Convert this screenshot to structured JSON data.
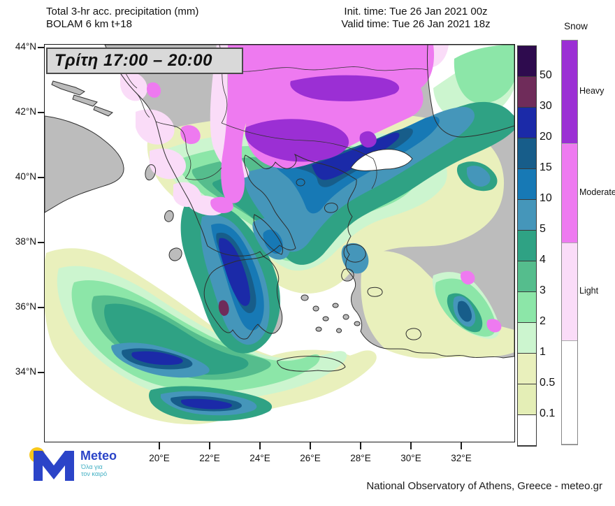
{
  "header": {
    "title_line1": "Total 3-hr acc. precipitation (mm)",
    "title_line2": "BOLAM 6 km t+18",
    "init_time": "Init. time: Tue 26 Jan 2021 00z",
    "valid_time": "Valid time: Tue 26 Jan 2021 18z"
  },
  "time_box": {
    "label": "Τρίτη 17:00 – 20:00"
  },
  "map": {
    "lat_labels": [
      "44°N",
      "42°N",
      "40°N",
      "38°N",
      "36°N",
      "34°N"
    ],
    "lon_labels": [
      "20°E",
      "22°E",
      "24°E",
      "26°E",
      "28°E",
      "30°E",
      "32°E"
    ],
    "land_color": "#bcbcbc",
    "sea_color": "#ffffff",
    "coast_color": "#2e2e2e"
  },
  "legend": {
    "precip_levels": [
      "50",
      "30",
      "20",
      "15",
      "10",
      "5",
      "4",
      "3",
      "2",
      "1",
      "0.5",
      "0.1"
    ],
    "precip_colors": [
      "#2e0b4e",
      "#6f2c5a",
      "#1b2aa8",
      "#175d8a",
      "#1779b5",
      "#4596ba",
      "#2fa284",
      "#55bd8d",
      "#8ce6a8",
      "#ccf5cf",
      "#e9f0bc",
      "#e4eeb6",
      "#ffffff"
    ],
    "snow_title": "Snow",
    "snow_categories": [
      {
        "label": "Heavy",
        "color": "#9b2fd4"
      },
      {
        "label": "Moderate",
        "color": "#ee7af0"
      },
      {
        "label": "Light",
        "color": "#fadcf8"
      },
      {
        "label": "",
        "color": "#ffffff"
      }
    ]
  },
  "logo": {
    "name": "Meteo",
    "tagline_line1": "Όλα για",
    "tagline_line2": "τον καιρό",
    "m_color": "#2b44c8",
    "dot_color": "#f8c81c"
  },
  "footer": {
    "attribution": "National Observatory of Athens, Greece - meteo.gr"
  }
}
